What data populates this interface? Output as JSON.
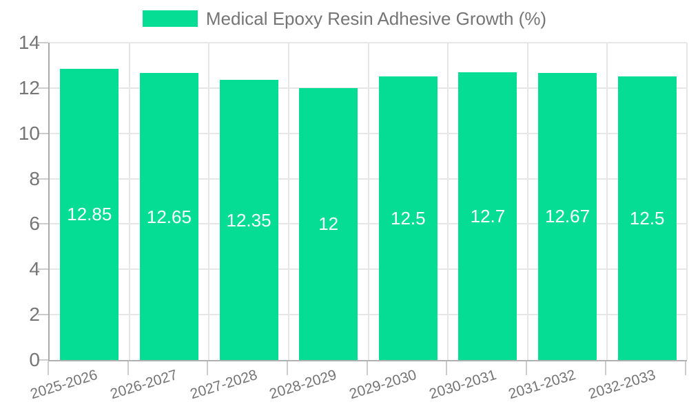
{
  "chart_data": {
    "type": "bar",
    "title": "Medical Epoxy Resin Adhesive Growth (%)",
    "legend": {
      "label": "Medical Epoxy Resin Adhesive Growth (%)",
      "position": "top"
    },
    "categories": [
      "2025-2026",
      "2026-2027",
      "2027-2028",
      "2028-2029",
      "2029-2030",
      "2030-2031",
      "2031-2032",
      "2032-2033"
    ],
    "values": [
      12.85,
      12.65,
      12.35,
      12,
      12.5,
      12.7,
      12.67,
      12.5
    ],
    "value_labels": [
      "12.85",
      "12.65",
      "12.35",
      "12",
      "12.5",
      "12.7",
      "12.67",
      "12.5"
    ],
    "xlabel": "",
    "ylabel": "",
    "ylim": [
      0,
      14
    ],
    "yticks": [
      0,
      2,
      4,
      6,
      8,
      10,
      12,
      14
    ],
    "grid": true,
    "legend_position": "top",
    "colors": {
      "bar": "#06dd94",
      "value_label": "#ffffff",
      "axis_text": "#757575",
      "grid_line": "#e6e6e6",
      "axis_line": "#ababab",
      "tick_mark": "#cccccc"
    },
    "x_label_rotation_deg": -17
  }
}
